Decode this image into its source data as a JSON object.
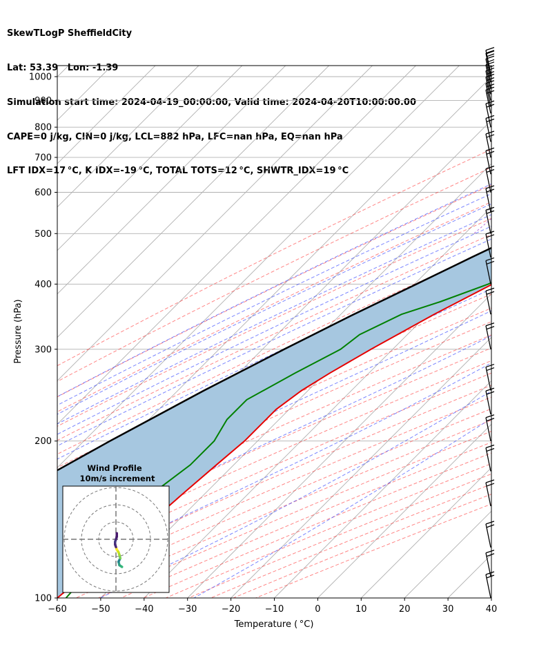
{
  "header": {
    "line1": "SkewTLogP SheffieldCity",
    "line2": "Lat: 53.39   Lon: -1.39",
    "line3": "Simulation start time: 2024-04-19_00:00:00, Valid time: 2024-04-20T10:00:00.00",
    "line4": "CAPE=0 j/kg, CIN=0 j/kg, LCL=882 hPa, LFC=nan hPa, EQ=nan hPa",
    "line5": "LFT IDX=17 °C, K IDX=-19 °C, TOTAL TOTS=12 °C, SHWTR_IDX=19 °C"
  },
  "colors": {
    "temperature": "#e60000",
    "dewpoint": "#008000",
    "parcel": "#000000",
    "cape_fill": "#a6c7e0",
    "dry_adiabat": "#ff3333",
    "moist_adiabat": "#3344ff",
    "mixing_ratio": "#9933cc",
    "isotherm": "#999999"
  },
  "chart_data": [
    {
      "type": "line",
      "kind": "skew-T log-P sounding",
      "xlabel": "Temperature ( °C)",
      "ylabel": "Pressure (hPa)",
      "xlim": [
        -60,
        40
      ],
      "ylim": [
        1050,
        100
      ],
      "y_scale": "log",
      "x_ticks": [
        "−60",
        "−50",
        "−40",
        "−30",
        "−20",
        "−10",
        "0",
        "10",
        "20",
        "30",
        "40"
      ],
      "y_ticks": [
        "100",
        "200",
        "300",
        "400",
        "500",
        "600",
        "700",
        "800",
        "900",
        "1000"
      ],
      "grid": true,
      "series": [
        {
          "key": "temperature",
          "points": [
            {
              "p": 1013,
              "t": 6.5
            },
            {
              "p": 980,
              "t": 4
            },
            {
              "p": 950,
              "t": 2
            },
            {
              "p": 900,
              "t": 1
            },
            {
              "p": 850,
              "t": 0.5
            },
            {
              "p": 800,
              "t": -1.5
            },
            {
              "p": 750,
              "t": -3.5
            },
            {
              "p": 700,
              "t": -5.5
            },
            {
              "p": 650,
              "t": -8.5
            },
            {
              "p": 600,
              "t": -12.5
            },
            {
              "p": 550,
              "t": -16.5
            },
            {
              "p": 500,
              "t": -21
            },
            {
              "p": 450,
              "t": -26
            },
            {
              "p": 400,
              "t": -32
            },
            {
              "p": 350,
              "t": -38.5
            },
            {
              "p": 300,
              "t": -45
            },
            {
              "p": 270,
              "t": -49
            },
            {
              "p": 250,
              "t": -51.5
            },
            {
              "p": 230,
              "t": -53
            },
            {
              "p": 210,
              "t": -53
            },
            {
              "p": 200,
              "t": -53
            },
            {
              "p": 180,
              "t": -54
            },
            {
              "p": 160,
              "t": -55
            },
            {
              "p": 150,
              "t": -55.5
            },
            {
              "p": 140,
              "t": -56
            },
            {
              "p": 130,
              "t": -57
            },
            {
              "p": 120,
              "t": -58
            },
            {
              "p": 110,
              "t": -59
            },
            {
              "p": 100,
              "t": -60
            }
          ]
        },
        {
          "key": "dewpoint",
          "points": [
            {
              "p": 1013,
              "t": -2
            },
            {
              "p": 980,
              "t": -2
            },
            {
              "p": 960,
              "t": -1.5
            },
            {
              "p": 930,
              "t": -4
            },
            {
              "p": 870,
              "t": -22
            },
            {
              "p": 820,
              "t": -26
            },
            {
              "p": 780,
              "t": -21
            },
            {
              "p": 740,
              "t": -13
            },
            {
              "p": 700,
              "t": -9
            },
            {
              "p": 650,
              "t": -5.5
            },
            {
              "p": 600,
              "t": -6.5
            },
            {
              "p": 550,
              "t": -10
            },
            {
              "p": 500,
              "t": -16
            },
            {
              "p": 450,
              "t": -25
            },
            {
              "p": 400,
              "t": -33
            },
            {
              "p": 370,
              "t": -40
            },
            {
              "p": 350,
              "t": -46
            },
            {
              "p": 320,
              "t": -51
            },
            {
              "p": 300,
              "t": -52
            },
            {
              "p": 270,
              "t": -57
            },
            {
              "p": 240,
              "t": -62
            },
            {
              "p": 220,
              "t": -62
            },
            {
              "p": 200,
              "t": -60
            },
            {
              "p": 180,
              "t": -60
            },
            {
              "p": 160,
              "t": -62
            },
            {
              "p": 150,
              "t": -62
            },
            {
              "p": 140,
              "t": -61
            },
            {
              "p": 120,
              "t": -59
            },
            {
              "p": 110,
              "t": -58.5
            },
            {
              "p": 100,
              "t": -58
            }
          ]
        },
        {
          "key": "parcel",
          "points": [
            {
              "p": 1013,
              "t": 6.5
            },
            {
              "p": 882,
              "t": -4.5
            },
            {
              "p": 850,
              "t": -6.5
            },
            {
              "p": 800,
              "t": -10
            },
            {
              "p": 750,
              "t": -13.5
            },
            {
              "p": 700,
              "t": -17.5
            },
            {
              "p": 650,
              "t": -22
            },
            {
              "p": 600,
              "t": -26.5
            },
            {
              "p": 550,
              "t": -31.5
            },
            {
              "p": 500,
              "t": -37
            },
            {
              "p": 450,
              "t": -43
            },
            {
              "p": 400,
              "t": -49.5
            },
            {
              "p": 350,
              "t": -57
            },
            {
              "p": 300,
              "t": -65
            },
            {
              "p": 250,
              "t": -74
            },
            {
              "p": 200,
              "t": -84
            },
            {
              "p": 150,
              "t": -96
            },
            {
              "p": 120,
              "t": -104
            },
            {
              "p": 100,
              "t": -110
            }
          ]
        }
      ]
    },
    {
      "type": "scatter",
      "kind": "hodograph",
      "title": "Wind Profile",
      "subtitle": "10m/s increment",
      "rings": [
        10,
        20,
        30
      ],
      "points": [
        {
          "u": 3.5,
          "v": -16,
          "c": "#36b77b"
        },
        {
          "u": 2,
          "v": -15,
          "c": "#2ea083"
        },
        {
          "u": 1.5,
          "v": -13,
          "c": "#25838e"
        },
        {
          "u": 2.5,
          "v": -11,
          "c": "#7ad151"
        },
        {
          "u": 2,
          "v": -9,
          "c": "#a5db36"
        },
        {
          "u": 1.5,
          "v": -7.5,
          "c": "#d1e21b"
        },
        {
          "u": 0.5,
          "v": -6,
          "c": "#fde725"
        },
        {
          "u": 0,
          "v": -4.5,
          "c": "#482878"
        },
        {
          "u": -0.5,
          "v": -3,
          "c": "#472d7b"
        },
        {
          "u": -0.5,
          "v": -1.5,
          "c": "#443983"
        },
        {
          "u": 0,
          "v": 0,
          "c": "#482475"
        },
        {
          "u": 0.5,
          "v": 1.5,
          "c": "#481a6c"
        },
        {
          "u": 0.5,
          "v": 3.5,
          "c": "#440154"
        }
      ]
    }
  ]
}
